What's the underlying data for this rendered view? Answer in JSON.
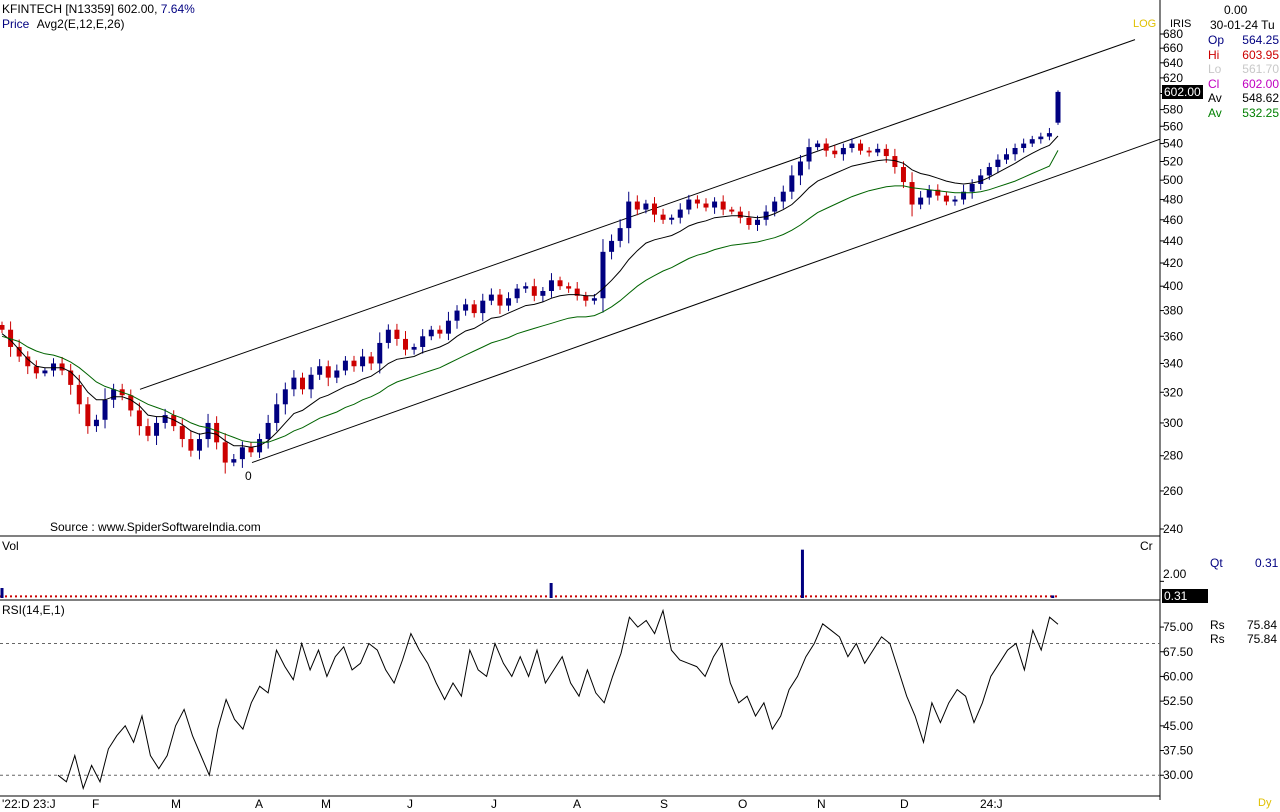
{
  "header": {
    "symbol": "KFINTECH [N13359]",
    "last_price": "602.00,",
    "change_pct": "7.64%",
    "price_label": "Price",
    "indicator_label": "Avg2(E,12,E,26)",
    "source": "Source : www.SpiderSoftwareIndia.com"
  },
  "info_panel": {
    "top_value": "0.00",
    "date": "30-01-24 Tu",
    "log_label": "LOG",
    "iris_label": "IRIS",
    "rows": [
      {
        "key": "Op",
        "value": "564.25",
        "color": "#000080"
      },
      {
        "key": "Hi",
        "value": "603.95",
        "color": "#cc0000"
      },
      {
        "key": "Lo",
        "value": "561.70",
        "color": "#c8c8c8"
      },
      {
        "key": "Cl",
        "value": "602.00",
        "color": "#c000c0"
      },
      {
        "key": "Av",
        "value": "548.62",
        "color": "#000000"
      },
      {
        "key": "Av",
        "value": "532.25",
        "color": "#008000"
      }
    ],
    "price_tag": "602.00"
  },
  "volume_panel": {
    "label": "Vol",
    "unit_label": "Cr",
    "tick": "2.00",
    "qt_label": "Qt",
    "qt_value": "0.31",
    "value_tag": "0.31"
  },
  "rsi_panel": {
    "label": "RSI(14,E,1)",
    "rs_label_1": "Rs",
    "rs_value_1": "75.84",
    "rs_label_2": "Rs",
    "rs_value_2": "75.84"
  },
  "corner_label": "Dy",
  "chart_data": [
    {
      "type": "candlestick",
      "title": "KFINTECH [N13359]",
      "y_scale": "log",
      "ylim": [
        230,
        690
      ],
      "y_ticks": [
        240,
        260,
        280,
        300,
        320,
        340,
        360,
        380,
        400,
        420,
        440,
        460,
        480,
        500,
        520,
        540,
        560,
        580,
        600,
        620,
        640,
        660,
        680
      ],
      "x_labels": [
        "'22:D 23:J",
        "F",
        "M",
        "A",
        "M",
        "J",
        "J",
        "A",
        "S",
        "O",
        "N",
        "D",
        "24:J"
      ],
      "annotation": "0",
      "last": {
        "open": 564.25,
        "high": 603.95,
        "low": 561.7,
        "close": 602.0
      },
      "price_series": [
        {
          "name": "Close",
          "values": [
            365,
            352,
            345,
            338,
            333,
            335,
            340,
            335,
            325,
            312,
            298,
            302,
            315,
            322,
            318,
            308,
            298,
            292,
            300,
            305,
            298,
            290,
            283,
            290,
            300,
            288,
            276,
            278,
            285,
            282,
            290,
            300,
            312,
            322,
            330,
            322,
            332,
            338,
            330,
            335,
            342,
            338,
            345,
            340,
            355,
            365,
            358,
            350,
            352,
            360,
            365,
            362,
            372,
            380,
            385,
            378,
            388,
            393,
            384,
            390,
            398,
            400,
            392,
            396,
            405,
            400,
            398,
            392,
            388,
            390,
            430,
            440,
            452,
            478,
            470,
            476,
            465,
            460,
            462,
            470,
            480,
            476,
            472,
            478,
            470,
            468,
            462,
            455,
            460,
            468,
            478,
            488,
            505,
            520,
            536,
            540,
            532,
            528,
            535,
            540,
            532,
            530,
            534,
            526,
            514,
            498,
            475,
            482,
            490,
            484,
            478,
            480,
            488,
            496,
            505,
            514,
            522,
            528,
            535,
            540,
            545,
            548,
            552,
            602
          ]
        },
        {
          "name": "Avg 12",
          "values": [
            362,
            357,
            350,
            343,
            338,
            337,
            337,
            337,
            334,
            328,
            320,
            315,
            315,
            317,
            317,
            315,
            311,
            305,
            304,
            304,
            302,
            299,
            295,
            293,
            294,
            293,
            289,
            286,
            286,
            285,
            286,
            289,
            294,
            300,
            306,
            308,
            312,
            316,
            318,
            321,
            324,
            326,
            329,
            331,
            335,
            340,
            343,
            344,
            345,
            348,
            350,
            352,
            355,
            360,
            364,
            366,
            370,
            374,
            375,
            378,
            381,
            384,
            385,
            387,
            390,
            392,
            393,
            393,
            392,
            392,
            398,
            405,
            413,
            423,
            431,
            438,
            441,
            443,
            445,
            449,
            454,
            457,
            459,
            462,
            463,
            464,
            464,
            463,
            462,
            463,
            466,
            470,
            475,
            483,
            492,
            499,
            503,
            507,
            511,
            515,
            517,
            519,
            521,
            522,
            521,
            518,
            511,
            507,
            505,
            502,
            499,
            497,
            496,
            497,
            499,
            503,
            508,
            513,
            518,
            524,
            529,
            534,
            538,
            548.62
          ]
        },
        {
          "name": "Avg 26",
          "values": [
            360,
            358,
            356,
            352,
            349,
            347,
            346,
            344,
            341,
            337,
            332,
            327,
            324,
            322,
            320,
            318,
            315,
            312,
            310,
            308,
            305,
            303,
            300,
            298,
            297,
            295,
            293,
            291,
            289,
            288,
            288,
            288,
            290,
            292,
            295,
            297,
            300,
            303,
            305,
            307,
            310,
            312,
            315,
            317,
            320,
            324,
            327,
            329,
            331,
            333,
            335,
            337,
            340,
            343,
            346,
            349,
            352,
            355,
            357,
            359,
            362,
            364,
            366,
            368,
            370,
            372,
            374,
            375,
            375,
            376,
            379,
            383,
            388,
            394,
            400,
            405,
            409,
            413,
            416,
            420,
            424,
            427,
            429,
            432,
            434,
            436,
            437,
            438,
            439,
            441,
            443,
            446,
            450,
            455,
            461,
            467,
            471,
            475,
            479,
            483,
            486,
            489,
            491,
            493,
            494,
            494,
            492,
            491,
            490,
            489,
            488,
            487,
            487,
            487,
            488,
            490,
            493,
            496,
            499,
            503,
            507,
            511,
            515,
            532.25
          ]
        }
      ]
    },
    {
      "type": "bar",
      "title": "Vol",
      "ylim": [
        0,
        6
      ],
      "y_ticks": [
        2.0
      ],
      "spikes": [
        {
          "at": 0.0,
          "value": 1.2
        },
        {
          "at": 0.52,
          "value": 1.8
        },
        {
          "at": 0.758,
          "value": 5.8
        },
        {
          "at": 0.995,
          "value": 0.31
        }
      ],
      "baseline_value": 0.2
    },
    {
      "type": "line",
      "title": "RSI(14,E,1)",
      "ylim": [
        24,
        82
      ],
      "y_ticks": [
        30.0,
        37.5,
        45.0,
        52.5,
        60.0,
        67.5,
        75.0
      ],
      "reference_lines": [
        30,
        70
      ],
      "values": [
        30,
        28,
        36,
        26,
        33,
        28,
        38,
        42,
        45,
        40,
        48,
        36,
        32,
        36,
        45,
        50,
        42,
        36,
        30,
        44,
        53,
        47,
        44,
        52,
        57,
        55,
        68,
        63,
        59,
        70,
        62,
        68,
        60,
        66,
        69,
        62,
        64,
        70,
        68,
        62,
        58,
        65,
        73,
        68,
        64,
        58,
        53,
        58,
        54,
        68,
        62,
        60,
        70,
        64,
        60,
        66,
        60,
        68,
        58,
        62,
        66,
        58,
        54,
        62,
        55,
        52,
        60,
        67,
        78,
        75,
        77,
        73,
        80,
        68,
        65,
        64,
        63,
        60,
        66,
        70,
        58,
        52,
        54,
        48,
        52,
        44,
        48,
        56,
        60,
        66,
        70,
        76,
        74,
        72,
        66,
        70,
        64,
        68,
        72,
        70,
        62,
        54,
        48,
        40,
        52,
        46,
        52,
        56,
        54,
        46,
        52,
        60,
        64,
        68,
        70,
        62,
        74,
        68,
        78,
        75.84
      ]
    }
  ]
}
